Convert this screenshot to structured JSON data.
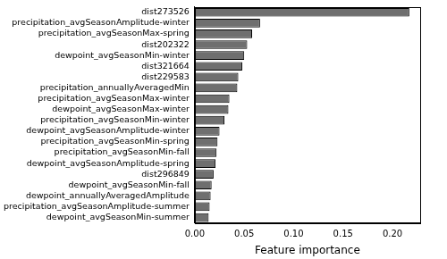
{
  "chart_data": {
    "type": "bar",
    "orientation": "horizontal",
    "x_label": "Feature importance",
    "categories": [
      "dist273526",
      "precipitation_avgSeasonAmplitude-winter",
      "precipitation_avgSeasonMax-spring",
      "dist202322",
      "dewpoint_avgSeasonMin-winter",
      "dist321664",
      "dist229583",
      "precipitation_annuallyAveragedMin",
      "precipitation_avgSeasonMax-winter",
      "dewpoint_avgSeasonMax-winter",
      "precipitation_avgSeasonMin-winter",
      "dewpoint_avgSeasonAmplitude-winter",
      "precipitation_avgSeasonMin-spring",
      "precipitation_avgSeasonMin-fall",
      "dewpoint_avgSeasonAmplitude-spring",
      "dist296849",
      "dewpoint_avgSeasonMin-fall",
      "dewpoint_annuallyAveragedAmplitude",
      "precipitation_avgSeasonAmplitude-summer",
      "dewpoint_avgSeasonMin-summer"
    ],
    "values": [
      0.217,
      0.066,
      0.058,
      0.053,
      0.05,
      0.048,
      0.044,
      0.043,
      0.035,
      0.034,
      0.03,
      0.025,
      0.023,
      0.022,
      0.021,
      0.019,
      0.017,
      0.016,
      0.015,
      0.014
    ],
    "color": "#6f6f6f",
    "xlim": [
      0,
      0.228
    ],
    "xticks": [
      {
        "value": 0,
        "label": "0.00"
      },
      {
        "value": 0.05,
        "label": "0.05"
      },
      {
        "value": 0.1,
        "label": "0.10"
      },
      {
        "value": 0.15,
        "label": "0.15"
      },
      {
        "value": 0.2,
        "label": "0.20"
      }
    ],
    "grid": false
  }
}
